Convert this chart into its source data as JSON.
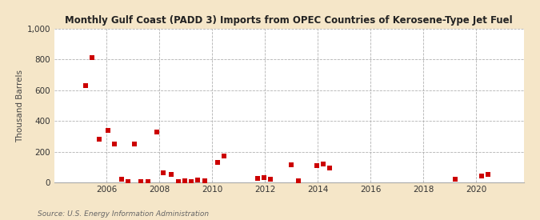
{
  "title": "Monthly Gulf Coast (PADD 3) Imports from OPEC Countries of Kerosene-Type Jet Fuel",
  "ylabel": "Thousand Barrels",
  "source": "Source: U.S. Energy Information Administration",
  "fig_bg_color": "#f5e6c8",
  "plot_bg_color": "#ffffff",
  "marker_color": "#cc0000",
  "marker_size": 14,
  "xlim": [
    2004.0,
    2021.8
  ],
  "ylim": [
    0,
    1000
  ],
  "yticks": [
    0,
    200,
    400,
    600,
    800,
    1000
  ],
  "xticks": [
    2006,
    2008,
    2010,
    2012,
    2014,
    2016,
    2018,
    2020
  ],
  "data_x": [
    2005.2,
    2005.45,
    2005.7,
    2006.05,
    2006.3,
    2006.55,
    2006.8,
    2007.05,
    2007.3,
    2007.55,
    2007.9,
    2008.15,
    2008.45,
    2008.7,
    2008.95,
    2009.2,
    2009.45,
    2009.7,
    2010.2,
    2010.45,
    2011.7,
    2011.95,
    2012.2,
    2013.0,
    2013.25,
    2013.95,
    2014.2,
    2014.45,
    2019.2,
    2020.2,
    2020.45
  ],
  "data_y": [
    630,
    810,
    280,
    340,
    250,
    20,
    5,
    250,
    5,
    5,
    330,
    65,
    55,
    5,
    10,
    5,
    15,
    10,
    130,
    175,
    25,
    30,
    20,
    115,
    10,
    110,
    120,
    95,
    20,
    45,
    55
  ]
}
